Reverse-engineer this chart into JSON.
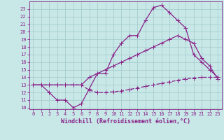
{
  "xlabel": "Windchill (Refroidissement éolien,°C)",
  "bg_color": "#c8e8e8",
  "grid_color": "#a0c8c8",
  "line_color": "#882288",
  "xlim": [
    -0.5,
    23.5
  ],
  "ylim": [
    9.8,
    24.0
  ],
  "xticks": [
    0,
    1,
    2,
    3,
    4,
    5,
    6,
    7,
    8,
    9,
    10,
    11,
    12,
    13,
    14,
    15,
    16,
    17,
    18,
    19,
    20,
    21,
    22,
    23
  ],
  "yticks": [
    10,
    11,
    12,
    13,
    14,
    15,
    16,
    17,
    18,
    19,
    20,
    21,
    22,
    23
  ],
  "line1_x": [
    0,
    1,
    2,
    3,
    4,
    5,
    6,
    7,
    8,
    9,
    10,
    11,
    12,
    13,
    14,
    15,
    16,
    17,
    18,
    19,
    20,
    21,
    22,
    23
  ],
  "line1_y": [
    13,
    13,
    12,
    11,
    11,
    10,
    10.5,
    12.5,
    14.5,
    14.5,
    17,
    18.5,
    19.5,
    19.5,
    21.5,
    23.2,
    23.5,
    22.5,
    21.5,
    20.5,
    17,
    16,
    15,
    14
  ],
  "line2_x": [
    0,
    1,
    2,
    3,
    4,
    5,
    6,
    7,
    8,
    9,
    10,
    11,
    12,
    13,
    14,
    15,
    16,
    17,
    18,
    19,
    20,
    21,
    22,
    23
  ],
  "line2_y": [
    13,
    13,
    13,
    13,
    13,
    13,
    13,
    14,
    14.5,
    15,
    15.5,
    16,
    16.5,
    17,
    17.5,
    18,
    18.5,
    19,
    19.5,
    19,
    18.5,
    16.5,
    15.5,
    13.8
  ],
  "line3_x": [
    0,
    1,
    2,
    3,
    4,
    5,
    6,
    7,
    8,
    9,
    10,
    11,
    12,
    13,
    14,
    15,
    16,
    17,
    18,
    19,
    20,
    21,
    22,
    23
  ],
  "line3_y": [
    13,
    13,
    13,
    13,
    13,
    13,
    13,
    12.3,
    12,
    12,
    12.1,
    12.2,
    12.4,
    12.6,
    12.8,
    13.0,
    13.2,
    13.4,
    13.6,
    13.8,
    13.9,
    14.0,
    14.0,
    14.0
  ],
  "marker_size": 2.5,
  "line_width": 0.9,
  "tick_fontsize": 5.0,
  "label_fontsize": 6.0
}
